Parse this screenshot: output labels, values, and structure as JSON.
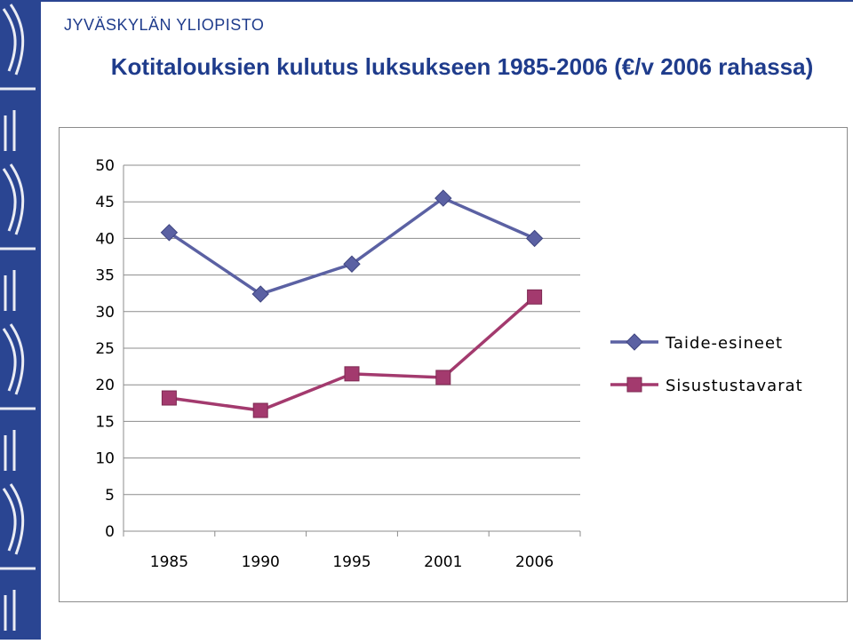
{
  "header": {
    "university": "JYVÄSKYLÄN YLIOPISTO",
    "title": "Kotitalouksien kulutus luksukseen 1985-2006 (€/v 2006 rahassa)"
  },
  "colors": {
    "band": "#2a4592",
    "title": "#1f3c8c",
    "series_1": "#5b61a3",
    "series_2": "#a33a6e",
    "grid": "#8c8c8c"
  },
  "chart_data": {
    "type": "line",
    "categories": [
      "1985",
      "1990",
      "1995",
      "2001",
      "2006"
    ],
    "series": [
      {
        "name": "Taide-esineet",
        "values": [
          40.8,
          32.4,
          36.5,
          45.5,
          40.0
        ],
        "marker": "diamond",
        "color": "#5b61a3"
      },
      {
        "name": "Sisustustavarat",
        "values": [
          18.2,
          16.5,
          21.5,
          21.0,
          32.0
        ],
        "marker": "square",
        "color": "#a33a6e"
      }
    ],
    "ylim": [
      0,
      50
    ],
    "yticks": [
      0,
      5,
      10,
      15,
      20,
      25,
      30,
      35,
      40,
      45,
      50
    ],
    "grid": true,
    "legend_position": "right"
  }
}
